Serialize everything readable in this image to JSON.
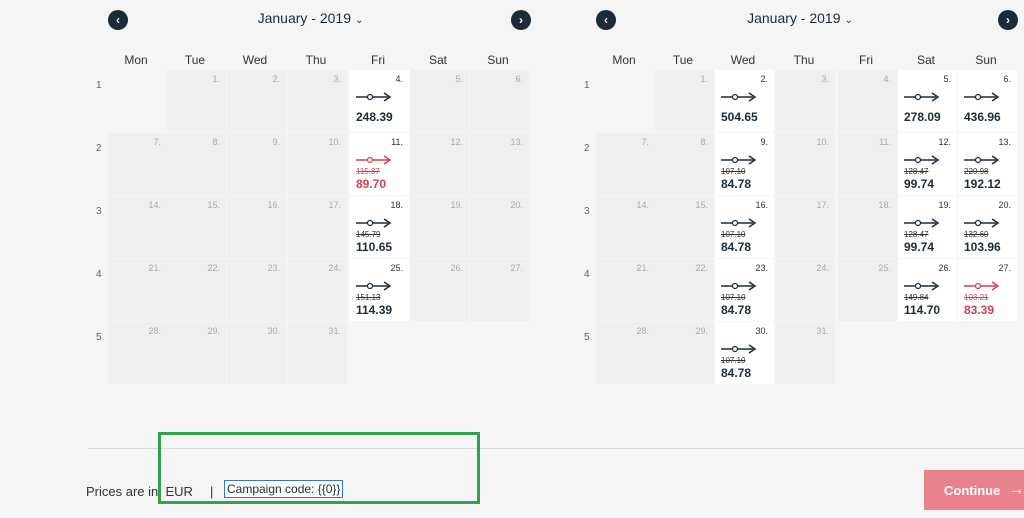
{
  "calendars": [
    {
      "month": "January - 2019",
      "weekdays": [
        "Mon",
        "Tue",
        "Wed",
        "Thu",
        "Fri",
        "Sat",
        "Sun"
      ],
      "weeks": [
        "1",
        "2",
        "3",
        "4",
        "5"
      ],
      "days": [
        {
          "week": 0,
          "col": 1,
          "day": "1.",
          "active": false
        },
        {
          "week": 0,
          "col": 2,
          "day": "2.",
          "active": false
        },
        {
          "week": 0,
          "col": 3,
          "day": "3.",
          "active": false
        },
        {
          "week": 0,
          "col": 4,
          "day": "4.",
          "active": true,
          "price": "248.39"
        },
        {
          "week": 0,
          "col": 5,
          "day": "5.",
          "active": false
        },
        {
          "week": 0,
          "col": 6,
          "day": "6.",
          "active": false
        },
        {
          "week": 1,
          "col": 0,
          "day": "7.",
          "active": false
        },
        {
          "week": 1,
          "col": 1,
          "day": "8.",
          "active": false
        },
        {
          "week": 1,
          "col": 2,
          "day": "9.",
          "active": false
        },
        {
          "week": 1,
          "col": 3,
          "day": "10.",
          "active": false
        },
        {
          "week": 1,
          "col": 4,
          "day": "11.",
          "active": true,
          "old": "115.87",
          "price": "89.70",
          "red": true
        },
        {
          "week": 1,
          "col": 5,
          "day": "12.",
          "active": false
        },
        {
          "week": 1,
          "col": 6,
          "day": "13.",
          "active": false
        },
        {
          "week": 2,
          "col": 0,
          "day": "14.",
          "active": false
        },
        {
          "week": 2,
          "col": 1,
          "day": "15.",
          "active": false
        },
        {
          "week": 2,
          "col": 2,
          "day": "16.",
          "active": false
        },
        {
          "week": 2,
          "col": 3,
          "day": "17.",
          "active": false
        },
        {
          "week": 2,
          "col": 4,
          "day": "18.",
          "active": true,
          "old": "145.79",
          "price": "110.65"
        },
        {
          "week": 2,
          "col": 5,
          "day": "19.",
          "active": false
        },
        {
          "week": 2,
          "col": 6,
          "day": "20.",
          "active": false
        },
        {
          "week": 3,
          "col": 0,
          "day": "21.",
          "active": false
        },
        {
          "week": 3,
          "col": 1,
          "day": "22.",
          "active": false
        },
        {
          "week": 3,
          "col": 2,
          "day": "23.",
          "active": false
        },
        {
          "week": 3,
          "col": 3,
          "day": "24.",
          "active": false
        },
        {
          "week": 3,
          "col": 4,
          "day": "25.",
          "active": true,
          "old": "151.13",
          "price": "114.39"
        },
        {
          "week": 3,
          "col": 5,
          "day": "26.",
          "active": false
        },
        {
          "week": 3,
          "col": 6,
          "day": "27.",
          "active": false
        },
        {
          "week": 4,
          "col": 0,
          "day": "28.",
          "active": false
        },
        {
          "week": 4,
          "col": 1,
          "day": "29.",
          "active": false
        },
        {
          "week": 4,
          "col": 2,
          "day": "30.",
          "active": false
        },
        {
          "week": 4,
          "col": 3,
          "day": "31.",
          "active": false
        }
      ]
    },
    {
      "month": "January - 2019",
      "weekdays": [
        "Mon",
        "Tue",
        "Wed",
        "Thu",
        "Fri",
        "Sat",
        "Sun"
      ],
      "weeks": [
        "1",
        "2",
        "3",
        "4",
        "5"
      ],
      "days": [
        {
          "week": 0,
          "col": 1,
          "day": "1.",
          "active": false
        },
        {
          "week": 0,
          "col": 2,
          "day": "2.",
          "active": true,
          "price": "504.65"
        },
        {
          "week": 0,
          "col": 3,
          "day": "3.",
          "active": false
        },
        {
          "week": 0,
          "col": 4,
          "day": "4.",
          "active": false
        },
        {
          "week": 0,
          "col": 5,
          "day": "5.",
          "active": true,
          "price": "278.09"
        },
        {
          "week": 0,
          "col": 6,
          "day": "6.",
          "active": true,
          "price": "436.96"
        },
        {
          "week": 1,
          "col": 0,
          "day": "7.",
          "active": false
        },
        {
          "week": 1,
          "col": 1,
          "day": "8.",
          "active": false
        },
        {
          "week": 1,
          "col": 2,
          "day": "9.",
          "active": true,
          "old": "107.10",
          "price": "84.78"
        },
        {
          "week": 1,
          "col": 3,
          "day": "10.",
          "active": false
        },
        {
          "week": 1,
          "col": 4,
          "day": "11.",
          "active": false
        },
        {
          "week": 1,
          "col": 5,
          "day": "12.",
          "active": true,
          "old": "128.47",
          "price": "99.74"
        },
        {
          "week": 1,
          "col": 6,
          "day": "13.",
          "active": true,
          "old": "220.98",
          "price": "192.12"
        },
        {
          "week": 2,
          "col": 0,
          "day": "14.",
          "active": false
        },
        {
          "week": 2,
          "col": 1,
          "day": "15.",
          "active": false
        },
        {
          "week": 2,
          "col": 2,
          "day": "16.",
          "active": true,
          "old": "107.10",
          "price": "84.78"
        },
        {
          "week": 2,
          "col": 3,
          "day": "17.",
          "active": false
        },
        {
          "week": 2,
          "col": 4,
          "day": "18.",
          "active": false
        },
        {
          "week": 2,
          "col": 5,
          "day": "19.",
          "active": true,
          "old": "128.47",
          "price": "99.74"
        },
        {
          "week": 2,
          "col": 6,
          "day": "20.",
          "active": true,
          "old": "132.60",
          "price": "103.96"
        },
        {
          "week": 3,
          "col": 0,
          "day": "21.",
          "active": false
        },
        {
          "week": 3,
          "col": 1,
          "day": "22.",
          "active": false
        },
        {
          "week": 3,
          "col": 2,
          "day": "23.",
          "active": true,
          "old": "107.10",
          "price": "84.78"
        },
        {
          "week": 3,
          "col": 3,
          "day": "24.",
          "active": false
        },
        {
          "week": 3,
          "col": 4,
          "day": "25.",
          "active": false
        },
        {
          "week": 3,
          "col": 5,
          "day": "26.",
          "active": true,
          "old": "149.84",
          "price": "114.70"
        },
        {
          "week": 3,
          "col": 6,
          "day": "27.",
          "active": true,
          "old": "103.21",
          "price": "83.39",
          "red": true
        },
        {
          "week": 4,
          "col": 0,
          "day": "28.",
          "active": false
        },
        {
          "week": 4,
          "col": 1,
          "day": "29.",
          "active": false
        },
        {
          "week": 4,
          "col": 2,
          "day": "30.",
          "active": true,
          "old": "107.10",
          "price": "84.78"
        },
        {
          "week": 4,
          "col": 3,
          "day": "31.",
          "active": false
        }
      ]
    }
  ],
  "footer": {
    "prices_in": "Prices are in: EUR",
    "separator": "|",
    "campaign": "Campaign code: {{0}}",
    "continue": "Continue",
    "continue_arrow": "→"
  },
  "icons": {
    "prev": "‹",
    "next": "›",
    "chevron": "⌄"
  },
  "colors": {
    "primary": "#1c2b39",
    "red": "#d0414f",
    "continue_bg": "#e8838d",
    "highlight": "#2fa24a"
  }
}
